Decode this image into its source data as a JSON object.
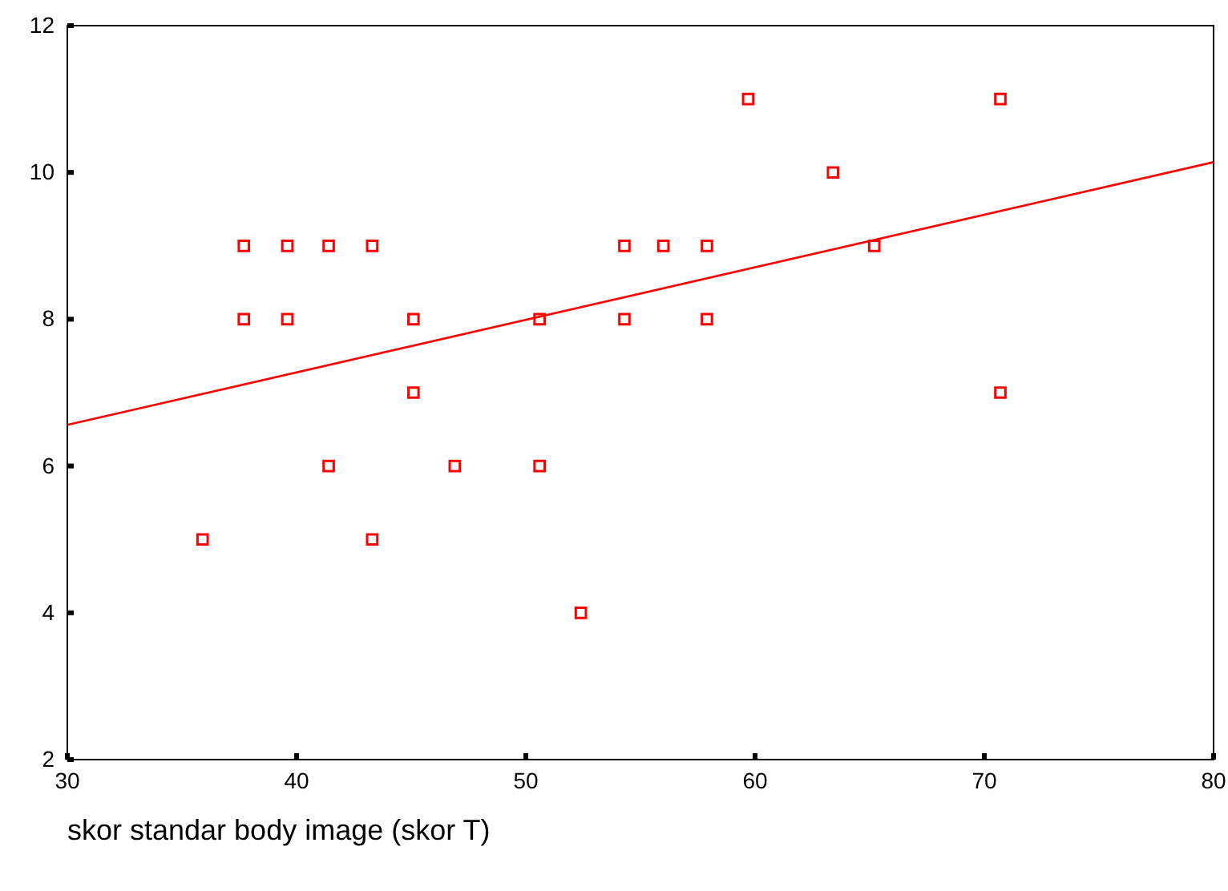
{
  "chart_data": {
    "type": "scatter",
    "xlabel": "skor standar body image (skor T)",
    "xlim": [
      30,
      80
    ],
    "xticks": [
      30,
      40,
      50,
      60,
      70,
      80
    ],
    "ylim": [
      2,
      12
    ],
    "yticks": [
      2,
      4,
      6,
      8,
      10,
      12
    ],
    "grid": false,
    "series": [
      {
        "marker": "square",
        "color": "#ff0000",
        "x": [
          35.9,
          37.7,
          37.7,
          39.6,
          39.6,
          41.4,
          41.4,
          43.3,
          43.3,
          45.1,
          45.1,
          46.9,
          50.6,
          50.6,
          52.4,
          54.3,
          54.3,
          56.0,
          57.9,
          57.9,
          59.7,
          63.4,
          65.2,
          70.7,
          70.7
        ],
        "values": [
          5,
          9,
          8,
          9,
          8,
          9,
          6,
          9,
          5,
          8,
          7,
          6,
          8,
          6,
          4,
          9,
          8,
          9,
          9,
          8,
          11,
          10,
          9,
          11,
          7
        ]
      },
      {
        "type": "line",
        "color": "#ff0000",
        "x": [
          30,
          80
        ],
        "values": [
          6.56,
          10.14
        ]
      }
    ]
  }
}
